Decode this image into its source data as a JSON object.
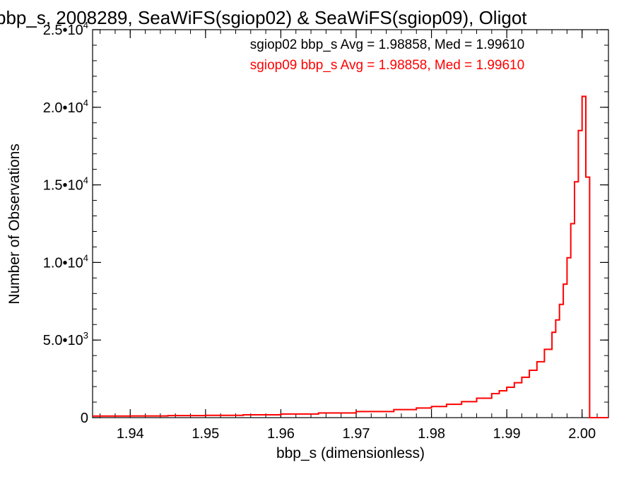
{
  "chart_data": {
    "type": "line",
    "title": "bbp_s, 2008289, SeaWiFS(sgiop02) & SeaWiFS(sgiop09), Oligot",
    "xlabel": "bbp_s (dimensionless)",
    "ylabel": "Number of Observations",
    "xlim": [
      1.935,
      2.0035
    ],
    "ylim": [
      0,
      25000
    ],
    "x_ticks": [
      {
        "value": 1.94,
        "label": "1.94"
      },
      {
        "value": 1.95,
        "label": "1.95"
      },
      {
        "value": 1.96,
        "label": "1.96"
      },
      {
        "value": 1.97,
        "label": "1.97"
      },
      {
        "value": 1.98,
        "label": "1.98"
      },
      {
        "value": 1.99,
        "label": "1.99"
      },
      {
        "value": 2.0,
        "label": "2.00"
      }
    ],
    "y_ticks": [
      {
        "value": 0,
        "label": "0",
        "exp": ""
      },
      {
        "value": 5000,
        "label": "5.0•10",
        "exp": "3"
      },
      {
        "value": 10000,
        "label": "1.0•10",
        "exp": "4"
      },
      {
        "value": 15000,
        "label": "1.5•10",
        "exp": "4"
      },
      {
        "value": 20000,
        "label": "2.0•10",
        "exp": "4"
      },
      {
        "value": 25000,
        "label": "2.5•10",
        "exp": "4"
      }
    ],
    "annotations": [
      {
        "text": "sgiop02 bbp_s Avg = 1.98858, Med = 1.99610",
        "color": "#000000"
      },
      {
        "text": "sgiop09 bbp_s Avg = 1.98858, Med = 1.99610",
        "color": "#ff0000"
      }
    ],
    "series": [
      {
        "color": "#ff0000",
        "step": true,
        "x": [
          1.935,
          1.94,
          1.945,
          1.95,
          1.955,
          1.96,
          1.965,
          1.97,
          1.975,
          1.978,
          1.98,
          1.982,
          1.984,
          1.986,
          1.988,
          1.989,
          1.99,
          1.991,
          1.992,
          1.993,
          1.994,
          1.995,
          1.996,
          1.9965,
          1.997,
          1.9975,
          1.998,
          1.9985,
          1.999,
          1.9995,
          2.0,
          2.0005,
          2.001
        ],
        "y": [
          100,
          110,
          130,
          150,
          180,
          230,
          300,
          390,
          520,
          620,
          720,
          860,
          1030,
          1250,
          1550,
          1730,
          1960,
          2250,
          2600,
          3050,
          3600,
          4400,
          5500,
          6300,
          7300,
          8600,
          10300,
          12500,
          15200,
          18500,
          20700,
          15500,
          0
        ]
      }
    ]
  }
}
